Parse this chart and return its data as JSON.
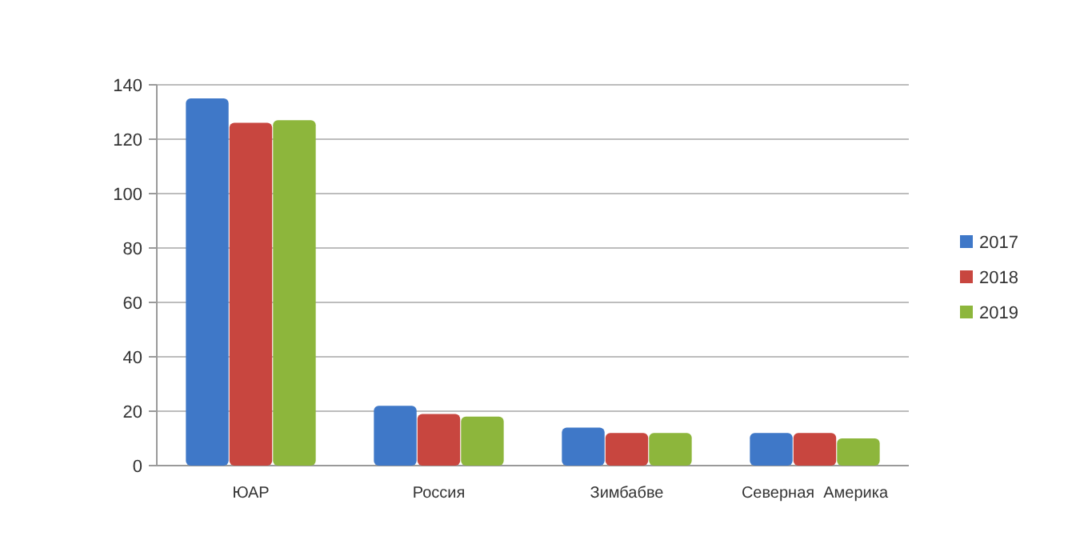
{
  "chart_data": {
    "type": "bar",
    "categories": [
      "ЮАР",
      "Россия",
      "Зимбабве",
      "Северная  Америка"
    ],
    "series": [
      {
        "name": "2017",
        "color": "#3f78c8",
        "values": [
          135,
          22,
          14,
          12
        ]
      },
      {
        "name": "2018",
        "color": "#c8463f",
        "values": [
          126,
          19,
          12,
          12
        ]
      },
      {
        "name": "2019",
        "color": "#8db63c",
        "values": [
          127,
          18,
          12,
          10
        ]
      }
    ],
    "ylim": [
      0,
      140
    ],
    "yticks": [
      0,
      20,
      40,
      60,
      80,
      100,
      120,
      140
    ],
    "grid": "y",
    "legend": "right"
  }
}
